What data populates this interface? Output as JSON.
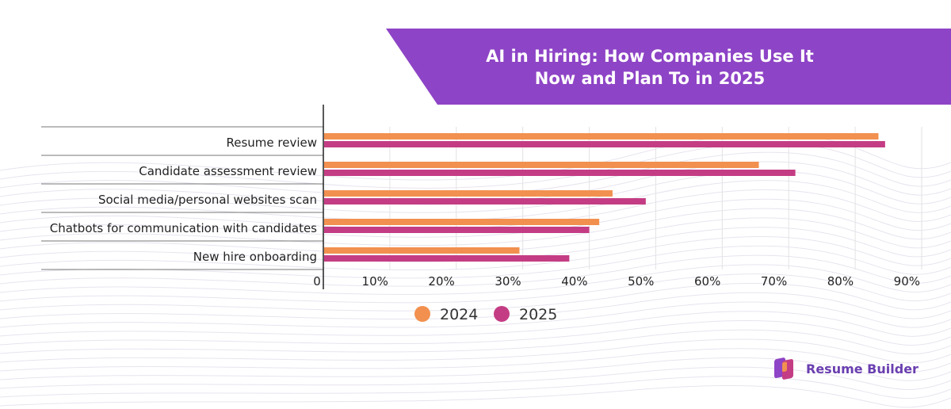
{
  "title": "AI in Hiring: How Companies Use It\nNow and Plan To in 2025",
  "brand": {
    "name": "Resume Builder"
  },
  "colors": {
    "series_2024": "#f2904f",
    "series_2025": "#c43d84",
    "banner": "#8e44c6",
    "brand_text": "#6a3fb0"
  },
  "chart_data": {
    "type": "bar",
    "orientation": "horizontal",
    "title": "AI in Hiring: How Companies Use It Now and Plan To in 2025",
    "categories": [
      "Resume review",
      "Candidate assessment review",
      "Social media/personal websites scan",
      "Chatbots for communication with candidates",
      "New hire onboarding"
    ],
    "series": [
      {
        "name": "2024",
        "values": [
          83.5,
          65.5,
          43.5,
          41.5,
          29.5
        ]
      },
      {
        "name": "2025",
        "values": [
          84.5,
          71,
          48.5,
          40,
          37
        ]
      }
    ],
    "xlim": [
      0,
      90
    ],
    "x_ticks": [
      "0",
      "10%",
      "20%",
      "30%",
      "40%",
      "50%",
      "60%",
      "70%",
      "80%",
      "90%"
    ],
    "grid": true,
    "legend_position": "bottom"
  }
}
